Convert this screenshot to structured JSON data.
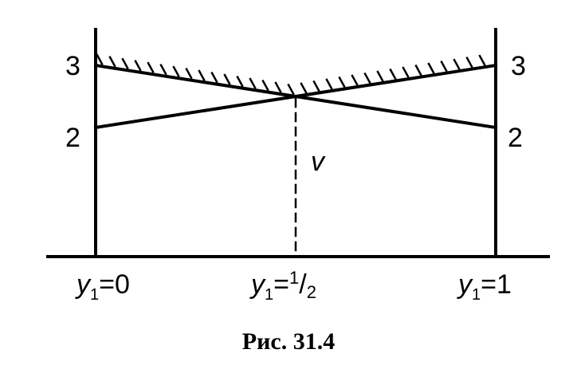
{
  "left_axis": {
    "labels": [
      "3",
      "2"
    ]
  },
  "right_axis": {
    "labels": [
      "3",
      "2"
    ]
  },
  "value_label": "v",
  "x_labels": [
    {
      "var": "y",
      "sub": "1",
      "rest": "=0"
    },
    {
      "var": "y",
      "sub": "1",
      "rest": "=",
      "num": "1",
      "den": "2"
    },
    {
      "var": "y",
      "sub": "1",
      "rest": "=1"
    }
  ],
  "caption": "Рис. 31.4"
}
